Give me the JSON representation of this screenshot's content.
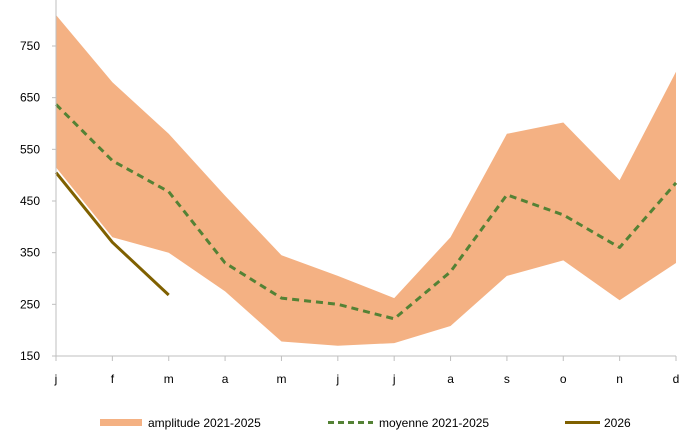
{
  "chart_data": {
    "type": "line",
    "categories": [
      "j",
      "f",
      "m",
      "a",
      "m",
      "j",
      "j",
      "a",
      "s",
      "o",
      "n",
      "d"
    ],
    "ylim": [
      150,
      850
    ],
    "yticks": [
      150,
      250,
      350,
      450,
      550,
      650,
      750
    ],
    "grid": false,
    "legend_position": "bottom",
    "band": {
      "name": "amplitude 2021-2025",
      "color": "#F4B183",
      "upper": [
        810,
        680,
        580,
        460,
        345,
        305,
        262,
        380,
        580,
        602,
        490,
        700
      ],
      "lower": [
        515,
        380,
        350,
        275,
        178,
        170,
        175,
        208,
        305,
        335,
        258,
        330
      ]
    },
    "series": [
      {
        "name": "moyenne 2021-2025",
        "color": "#548235",
        "style": "dashed",
        "values": [
          637,
          528,
          468,
          330,
          262,
          250,
          222,
          313,
          462,
          423,
          360,
          485
        ]
      },
      {
        "name": "2026",
        "color": "#7F6000",
        "style": "solid",
        "values": [
          505,
          370,
          268,
          null,
          null,
          null,
          null,
          null,
          null,
          null,
          null,
          null
        ]
      }
    ]
  }
}
